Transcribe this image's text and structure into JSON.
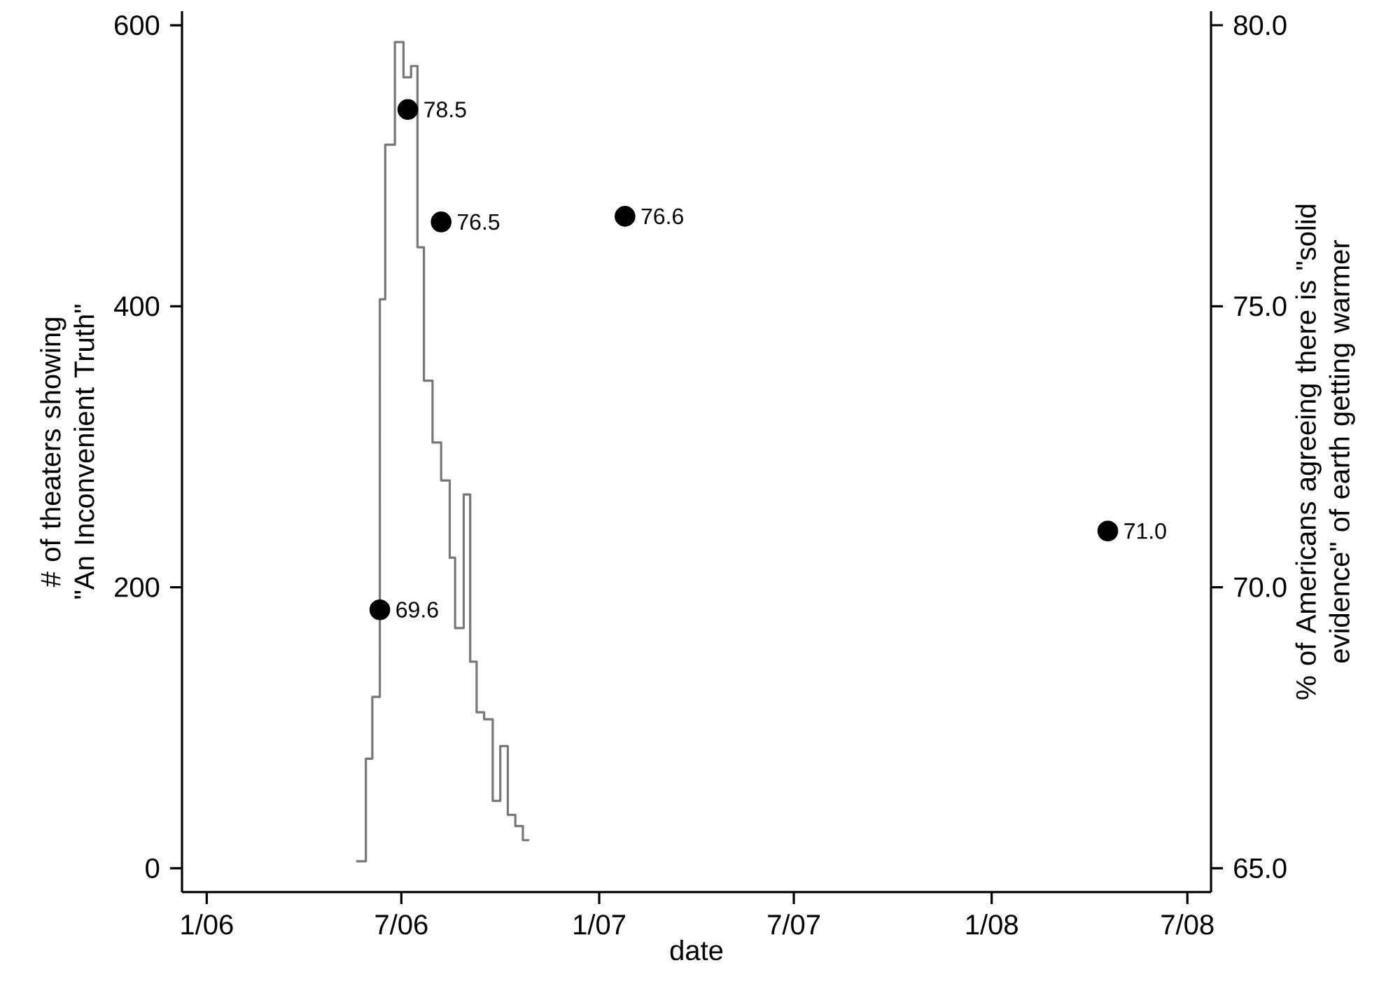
{
  "chart_data": {
    "type": "step",
    "xlabel": "date",
    "ylabel": "# of theaters showing \"An Inconvenient Truth\"",
    "y2label": "% of Americans agreeing there is \"solid evidence\" of earth getting warmer",
    "xlim": [
      "2005-12-09",
      "2008-07-23"
    ],
    "xticks": [
      {
        "value": "2006-01-01",
        "label": "1/06"
      },
      {
        "value": "2006-07-01",
        "label": "7/06"
      },
      {
        "value": "2007-01-01",
        "label": "1/07"
      },
      {
        "value": "2007-07-01",
        "label": "7/07"
      },
      {
        "value": "2008-01-01",
        "label": "1/08"
      },
      {
        "value": "2008-07-01",
        "label": "7/08"
      }
    ],
    "ylim": [
      -17,
      610
    ],
    "yticks": [
      0,
      200,
      400,
      600
    ],
    "y2lim": [
      64.575,
      80.25
    ],
    "y2ticks": [
      {
        "value": 65,
        "label": "65.0"
      },
      {
        "value": 70,
        "label": "70.0"
      },
      {
        "value": 75,
        "label": "75.0"
      },
      {
        "value": 80,
        "label": "80.0"
      }
    ],
    "grid": false,
    "series": [
      {
        "color": "#777777",
        "x": [
          "2006-05-20",
          "2006-05-29",
          "2006-06-04",
          "2006-06-11",
          "2006-06-16",
          "2006-06-25",
          "2006-07-03",
          "2006-07-10",
          "2006-07-16",
          "2006-07-22",
          "2006-07-30",
          "2006-08-07",
          "2006-08-15",
          "2006-08-20",
          "2006-08-28",
          "2006-09-03",
          "2006-09-09",
          "2006-09-16",
          "2006-09-24",
          "2006-10-01",
          "2006-10-08",
          "2006-10-15",
          "2006-10-22",
          "2006-10-28"
        ],
        "values": [
          5,
          78,
          122,
          405,
          515,
          588,
          563,
          571,
          442,
          347,
          303,
          276,
          221,
          171,
          266,
          147,
          111,
          106,
          48,
          87,
          38,
          30,
          20,
          20
        ]
      },
      {
        "type": "scatter",
        "axis": "y2",
        "marker": "circle",
        "color": "#000000",
        "x": [
          "2006-06-11",
          "2006-07-07",
          "2006-08-07",
          "2007-01-25",
          "2008-04-18"
        ],
        "values": [
          69.6,
          78.5,
          76.5,
          76.6,
          71.0
        ],
        "value_labels": [
          "69.6",
          "78.5",
          "76.5",
          "76.6",
          "71.0"
        ]
      }
    ]
  }
}
